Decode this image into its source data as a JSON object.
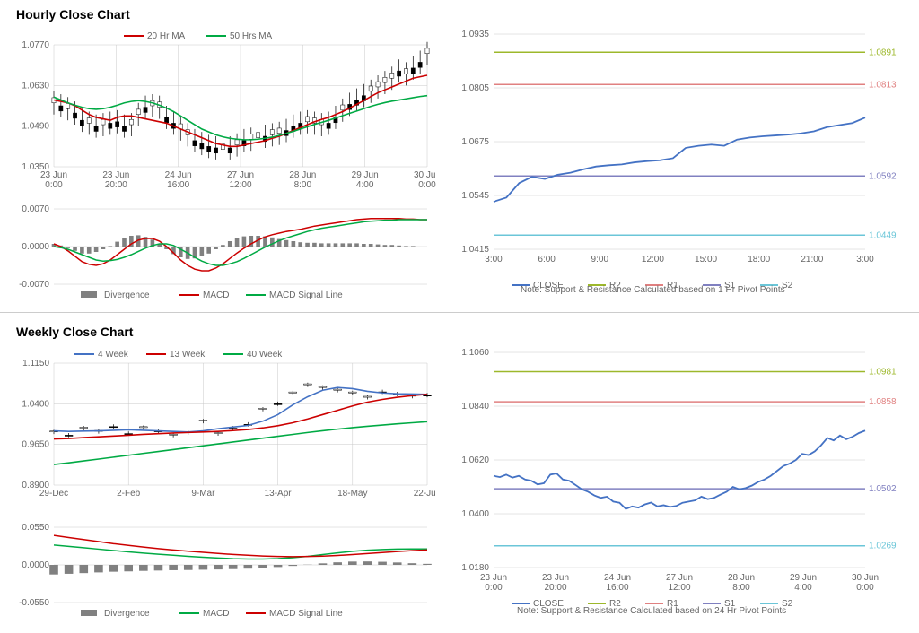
{
  "hourly": {
    "title": "Hourly Close Chart",
    "price": {
      "ylim": [
        1.035,
        1.077
      ],
      "yticks": [
        1.035,
        1.049,
        1.063,
        1.077
      ],
      "xlabels": [
        [
          "23 Jun",
          "0:00"
        ],
        [
          "23 Jun",
          "20:00"
        ],
        [
          "24 Jun",
          "16:00"
        ],
        [
          "27 Jun",
          "12:00"
        ],
        [
          "28 Jun",
          "8:00"
        ],
        [
          "29 Jun",
          "4:00"
        ],
        [
          "30 Jun",
          "0:00"
        ]
      ],
      "legend": [
        {
          "label": "20 Hr MA",
          "color": "#cc0000"
        },
        {
          "label": "50 Hrs MA",
          "color": "#00aa44"
        }
      ],
      "ma20_color": "#cc0000",
      "ma50_color": "#00aa44",
      "candle_color": "#000000",
      "grid_color": "#c8c8c8",
      "candles": [
        1.057,
        1.056,
        1.055,
        1.0535,
        1.051,
        1.05,
        1.049,
        1.0495,
        1.05,
        1.0505,
        1.049,
        1.0495,
        1.053,
        1.0555,
        1.056,
        1.0555,
        1.052,
        1.05,
        1.048,
        1.046,
        1.044,
        1.043,
        1.042,
        1.0415,
        1.041,
        1.0415,
        1.0425,
        1.044,
        1.0445,
        1.045,
        1.0455,
        1.046,
        1.0465,
        1.0475,
        1.049,
        1.05,
        1.0505,
        1.05,
        1.0495,
        1.05,
        1.052,
        1.0545,
        1.0565,
        1.058,
        1.0595,
        1.061,
        1.0625,
        1.064,
        1.0655,
        1.068,
        1.067,
        1.069,
        1.071,
        1.074
      ],
      "ma20": [
        1.058,
        1.0575,
        1.057,
        1.056,
        1.0545,
        1.053,
        1.052,
        1.0515,
        1.051,
        1.052,
        1.0525,
        1.0525,
        1.052,
        1.0515,
        1.051,
        1.0505,
        1.05,
        1.049,
        1.048,
        1.047,
        1.046,
        1.045,
        1.044,
        1.043,
        1.0425,
        1.042,
        1.042,
        1.0425,
        1.043,
        1.0435,
        1.044,
        1.0448,
        1.0455,
        1.0465,
        1.0475,
        1.0485,
        1.0495,
        1.0505,
        1.0513,
        1.052,
        1.053,
        1.054,
        1.0552,
        1.0565,
        1.0578,
        1.0592,
        1.0605,
        1.0615,
        1.0625,
        1.0635,
        1.0645,
        1.0655,
        1.066,
        1.0665
      ],
      "ma50": [
        1.059,
        1.058,
        1.057,
        1.0562,
        1.0555,
        1.055,
        1.0548,
        1.055,
        1.0555,
        1.0562,
        1.057,
        1.0575,
        1.0578,
        1.0575,
        1.057,
        1.0562,
        1.0552,
        1.054,
        1.0525,
        1.051,
        1.0495,
        1.048,
        1.047,
        1.046,
        1.0453,
        1.0448,
        1.0445,
        1.0443,
        1.0443,
        1.0445,
        1.0448,
        1.0452,
        1.0458,
        1.0465,
        1.0472,
        1.048,
        1.0488,
        1.0496,
        1.0503,
        1.051,
        1.0518,
        1.0526,
        1.0534,
        1.0542,
        1.055,
        1.0558,
        1.0565,
        1.0571,
        1.0576,
        1.058,
        1.0584,
        1.0588,
        1.0592,
        1.0595
      ]
    },
    "macd": {
      "ylim": [
        -0.007,
        0.007
      ],
      "yticks": [
        -0.007,
        0.0,
        0.007
      ],
      "legend": [
        {
          "label": "Divergence",
          "color": "#808080",
          "type": "bar"
        },
        {
          "label": "MACD",
          "color": "#cc0000"
        },
        {
          "label": "MACD Signal Line",
          "color": "#00aa44"
        }
      ],
      "macd_line": [
        0.0005,
        0.0,
        -0.0008,
        -0.0018,
        -0.0028,
        -0.0033,
        -0.0035,
        -0.0032,
        -0.0025,
        -0.0015,
        -0.0005,
        0.0005,
        0.0012,
        0.0015,
        0.0015,
        0.001,
        0.0,
        -0.0012,
        -0.0025,
        -0.0035,
        -0.0042,
        -0.0045,
        -0.0045,
        -0.004,
        -0.0032,
        -0.0022,
        -0.0012,
        -0.0003,
        0.0005,
        0.0012,
        0.0018,
        0.0022,
        0.0025,
        0.0028,
        0.003,
        0.0032,
        0.0035,
        0.0038,
        0.004,
        0.0042,
        0.0044,
        0.0046,
        0.0048,
        0.005,
        0.0051,
        0.0052,
        0.0052,
        0.0052,
        0.0052,
        0.0052,
        0.0051,
        0.0051,
        0.005,
        0.005
      ],
      "signal_line": [
        0.0,
        -0.0002,
        -0.0005,
        -0.001,
        -0.0015,
        -0.002,
        -0.0025,
        -0.0027,
        -0.0026,
        -0.0024,
        -0.002,
        -0.0015,
        -0.0009,
        -0.0003,
        0.0002,
        0.0005,
        0.0005,
        0.0002,
        -0.0005,
        -0.0012,
        -0.002,
        -0.0027,
        -0.0032,
        -0.0035,
        -0.0035,
        -0.0032,
        -0.0028,
        -0.0022,
        -0.0015,
        -0.0008,
        -0.0001,
        0.0005,
        0.0011,
        0.0016,
        0.002,
        0.0024,
        0.0028,
        0.0031,
        0.0034,
        0.0036,
        0.0038,
        0.004,
        0.0042,
        0.0044,
        0.0046,
        0.0047,
        0.0048,
        0.0049,
        0.0049,
        0.005,
        0.005,
        0.005,
        0.005,
        0.005
      ],
      "divergence": [
        0.0005,
        0.0002,
        -0.0003,
        -0.0008,
        -0.0013,
        -0.0013,
        -0.001,
        -0.0005,
        0.0001,
        0.0009,
        0.0015,
        0.002,
        0.0021,
        0.0018,
        0.0013,
        0.0005,
        -0.0005,
        -0.0014,
        -0.002,
        -0.0023,
        -0.0022,
        -0.0018,
        -0.0013,
        -0.0005,
        0.0003,
        0.001,
        0.0016,
        0.0019,
        0.002,
        0.002,
        0.0019,
        0.0017,
        0.0014,
        0.0012,
        0.001,
        0.0008,
        0.0007,
        0.0007,
        0.0006,
        0.0006,
        0.0006,
        0.0006,
        0.0006,
        0.0006,
        0.0005,
        0.0005,
        0.0004,
        0.0003,
        0.0003,
        0.0002,
        0.0001,
        0.0001,
        0.0,
        0.0
      ]
    },
    "pivot": {
      "ylim": [
        1.0415,
        1.0935
      ],
      "yticks": [
        1.0415,
        1.0545,
        1.0675,
        1.0805,
        1.0935
      ],
      "xlabels": [
        "3:00",
        "6:00",
        "9:00",
        "12:00",
        "15:00",
        "18:00",
        "21:00",
        "3:00"
      ],
      "levels": [
        {
          "name": "R2",
          "value": 1.0891,
          "color": "#9db82b"
        },
        {
          "name": "R1",
          "value": 1.0813,
          "color": "#e08080"
        },
        {
          "name": "S1",
          "value": 1.0592,
          "color": "#8080c0"
        },
        {
          "name": "S2",
          "value": 1.0449,
          "color": "#6bc6d8"
        }
      ],
      "legend": [
        {
          "label": "CLOSE",
          "color": "#4472c4"
        },
        {
          "label": "R2",
          "color": "#9db82b"
        },
        {
          "label": "R1",
          "color": "#e08080"
        },
        {
          "label": "S1",
          "color": "#8080c0"
        },
        {
          "label": "S2",
          "color": "#6bc6d8"
        }
      ],
      "close_color": "#4472c4",
      "close": [
        1.053,
        1.054,
        1.0575,
        1.059,
        1.0585,
        1.0595,
        1.06,
        1.0608,
        1.0615,
        1.0618,
        1.062,
        1.0625,
        1.0628,
        1.063,
        1.0635,
        1.066,
        1.0665,
        1.0668,
        1.0665,
        1.068,
        1.0685,
        1.0688,
        1.069,
        1.0692,
        1.0695,
        1.07,
        1.071,
        1.0715,
        1.072,
        1.0733
      ],
      "note": "Note: Support & Resistance Calculated based on 1 Hr Pivot Points"
    }
  },
  "weekly": {
    "title": "Weekly Close Chart",
    "price": {
      "ylim": [
        0.89,
        1.115
      ],
      "yticks": [
        0.89,
        0.965,
        1.04,
        1.115
      ],
      "xlabels": [
        "29-Dec",
        "2-Feb",
        "9-Mar",
        "13-Apr",
        "18-May",
        "22-Jun"
      ],
      "legend": [
        {
          "label": "4 Week",
          "color": "#4472c4"
        },
        {
          "label": "13 Week",
          "color": "#cc0000"
        },
        {
          "label": "40 Week",
          "color": "#00aa44"
        }
      ],
      "candle_color": "#000000",
      "grid_color": "#c8c8c8",
      "candles": [
        0.988,
        0.982,
        0.995,
        0.989,
        0.998,
        0.985,
        0.996,
        0.99,
        0.982,
        0.987,
        1.008,
        0.985,
        0.995,
        1.002,
        1.03,
        1.04,
        1.06,
        1.075,
        1.07,
        1.065,
        1.06,
        1.052,
        1.062,
        1.058,
        1.054,
        1.056
      ],
      "ma4": [
        0.99,
        0.989,
        0.9895,
        0.99,
        0.991,
        0.992,
        0.991,
        0.99,
        0.989,
        0.988,
        0.99,
        0.994,
        0.997,
        1.0,
        1.008,
        1.02,
        1.038,
        1.053,
        1.065,
        1.07,
        1.068,
        1.063,
        1.06,
        1.0585,
        1.058,
        1.0575
      ],
      "ma4_color": "#4472c4",
      "ma13": [
        0.975,
        0.976,
        0.9775,
        0.979,
        0.9805,
        0.982,
        0.9835,
        0.9848,
        0.986,
        0.987,
        0.988,
        0.989,
        0.9905,
        0.9925,
        0.9955,
        0.9995,
        1.005,
        1.012,
        1.02,
        1.028,
        1.036,
        1.043,
        1.048,
        1.052,
        1.055,
        1.0575
      ],
      "ma13_color": "#cc0000",
      "ma40": [
        0.928,
        0.931,
        0.9345,
        0.938,
        0.9415,
        0.945,
        0.9485,
        0.952,
        0.9555,
        0.959,
        0.9625,
        0.966,
        0.9695,
        0.973,
        0.9765,
        0.98,
        0.9835,
        0.987,
        0.9902,
        0.9932,
        0.996,
        0.9985,
        1.0008,
        1.003,
        1.005,
        1.007
      ],
      "ma40_color": "#00aa44"
    },
    "macd": {
      "ylim": [
        -0.055,
        0.055
      ],
      "yticks": [
        -0.055,
        0.0,
        0.055
      ],
      "legend": [
        {
          "label": "Divergence",
          "color": "#808080",
          "type": "bar"
        },
        {
          "label": "MACD",
          "color": "#00aa44"
        },
        {
          "label": "MACD Signal Line",
          "color": "#cc0000"
        }
      ],
      "macd_line": [
        0.029,
        0.027,
        0.025,
        0.023,
        0.021,
        0.019,
        0.0172,
        0.0155,
        0.014,
        0.0125,
        0.0112,
        0.01,
        0.009,
        0.0085,
        0.0085,
        0.0092,
        0.0105,
        0.0125,
        0.015,
        0.0175,
        0.0198,
        0.0215,
        0.0225,
        0.023,
        0.0232,
        0.0233
      ],
      "signal_line": [
        0.043,
        0.04,
        0.037,
        0.034,
        0.031,
        0.0285,
        0.026,
        0.0238,
        0.0218,
        0.02,
        0.0183,
        0.0167,
        0.0152,
        0.014,
        0.013,
        0.0123,
        0.012,
        0.0122,
        0.0128,
        0.0138,
        0.015,
        0.0165,
        0.018,
        0.0195,
        0.0208,
        0.0218
      ],
      "divergence": [
        -0.014,
        -0.013,
        -0.012,
        -0.011,
        -0.01,
        -0.0095,
        -0.0088,
        -0.0083,
        -0.0078,
        -0.0075,
        -0.0071,
        -0.0067,
        -0.0062,
        -0.0055,
        -0.0045,
        -0.0031,
        -0.0015,
        0.0003,
        0.0022,
        0.0037,
        0.0048,
        0.005,
        0.0045,
        0.0035,
        0.0024,
        0.0015
      ]
    },
    "pivot": {
      "ylim": [
        1.018,
        1.106
      ],
      "yticks": [
        1.018,
        1.04,
        1.062,
        1.084,
        1.106
      ],
      "xlabels": [
        [
          "23 Jun",
          "0:00"
        ],
        [
          "23 Jun",
          "20:00"
        ],
        [
          "24 Jun",
          "16:00"
        ],
        [
          "27 Jun",
          "12:00"
        ],
        [
          "28 Jun",
          "8:00"
        ],
        [
          "29 Jun",
          "4:00"
        ],
        [
          "30 Jun",
          "0:00"
        ]
      ],
      "levels": [
        {
          "name": "R2",
          "value": 1.0981,
          "color": "#9db82b"
        },
        {
          "name": "R1",
          "value": 1.0858,
          "color": "#e08080"
        },
        {
          "name": "S1",
          "value": 1.0502,
          "color": "#8080c0"
        },
        {
          "name": "S2",
          "value": 1.0269,
          "color": "#6bc6d8"
        }
      ],
      "legend": [
        {
          "label": "CLOSE",
          "color": "#4472c4"
        },
        {
          "label": "R2",
          "color": "#9db82b"
        },
        {
          "label": "R1",
          "color": "#e08080"
        },
        {
          "label": "S1",
          "color": "#8080c0"
        },
        {
          "label": "S2",
          "color": "#6bc6d8"
        }
      ],
      "close_color": "#4472c4",
      "close": [
        1.0555,
        1.055,
        1.056,
        1.0548,
        1.0555,
        1.054,
        1.0535,
        1.052,
        1.0525,
        1.056,
        1.0565,
        1.054,
        1.0535,
        1.0518,
        1.05,
        1.049,
        1.0475,
        1.0465,
        1.047,
        1.045,
        1.0445,
        1.042,
        1.043,
        1.0425,
        1.0438,
        1.0446,
        1.043,
        1.0435,
        1.0428,
        1.0432,
        1.0445,
        1.045,
        1.0455,
        1.047,
        1.046,
        1.0465,
        1.0478,
        1.049,
        1.051,
        1.05,
        1.0505,
        1.0515,
        1.053,
        1.054,
        1.0555,
        1.0575,
        1.0595,
        1.0605,
        1.062,
        1.0645,
        1.064,
        1.0655,
        1.068,
        1.071,
        1.07,
        1.072,
        1.0705,
        1.0715,
        1.073,
        1.074
      ],
      "note": "Note: Support & Resistance Calculated based on 24 Hr Pivot Points"
    }
  },
  "layout": {
    "title_fontsize": 14,
    "axis_fontsize": 10
  }
}
